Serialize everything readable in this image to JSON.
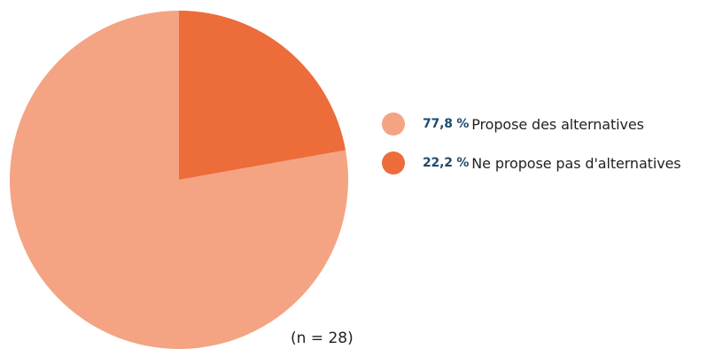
{
  "chart_data": {
    "type": "pie",
    "title": "",
    "slices": [
      {
        "label": "Propose des alternatives",
        "value_text": "77,8 %",
        "value": 77.8,
        "color": "#f4a483"
      },
      {
        "label": "Ne propose pas d'alternatives",
        "value_text": "22,2 %",
        "value": 22.2,
        "color": "#ec6c3a"
      }
    ],
    "legend_position": "right",
    "note": "(n = 28)"
  }
}
